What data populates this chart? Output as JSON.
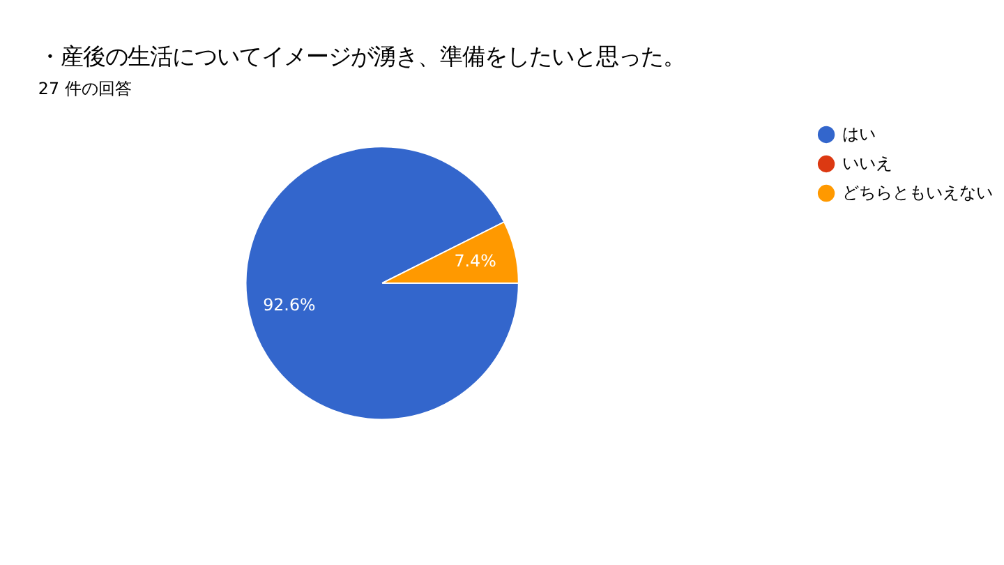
{
  "chart_data": {
    "type": "pie",
    "title": "・産後の生活についてイメージが湧き、準備をしたいと思った。",
    "subtitle": "27 件の回答",
    "categories": [
      "はい",
      "いいえ",
      "どちらともいえない"
    ],
    "values": [
      92.6,
      0,
      7.4
    ],
    "colors": [
      "#3366cc",
      "#dc3912",
      "#ff9900"
    ],
    "value_labels": [
      "92.6%",
      null,
      "7.4%"
    ],
    "legend": "right"
  }
}
